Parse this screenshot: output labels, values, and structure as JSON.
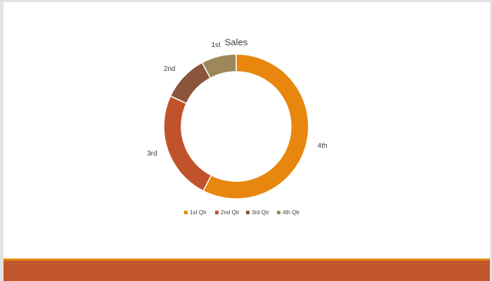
{
  "chart_data": {
    "type": "doughnut",
    "title": "Sales",
    "categories": [
      "1st Qtr",
      "2nd Qtr",
      "3rd Qtr",
      "4th Qtr"
    ],
    "values": [
      57.5,
      24.4,
      10.3,
      7.8
    ],
    "data_labels": [
      "4th",
      "3rd",
      "2nd",
      "1st"
    ],
    "colors": [
      "#e8870e",
      "#c0532b",
      "#8a553c",
      "#9e8758"
    ],
    "legend": "bottom"
  }
}
